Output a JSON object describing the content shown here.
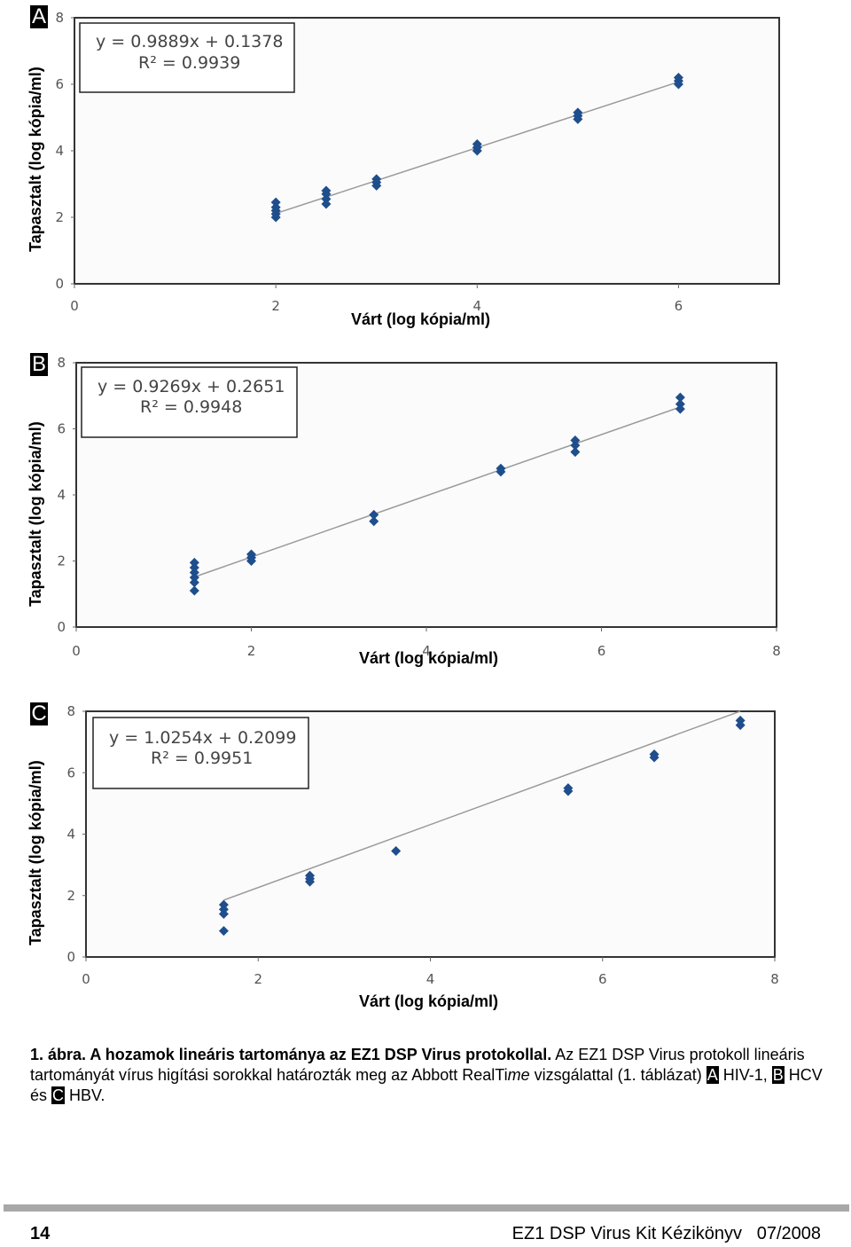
{
  "charts": [
    {
      "letter": "A",
      "ylabel": "Tapasztalt (log kópia/ml)",
      "xlabel": "Várt (log kópia/ml)",
      "equation": "y = 0.9889x + 0.1378",
      "r2": "R² = 0.9939"
    },
    {
      "letter": "B",
      "ylabel": "Tapasztalt (log kópia/ml)",
      "xlabel": "Várt (log kópia/ml)",
      "equation": "y = 0.9269x + 0.2651",
      "r2": "R² = 0.9948"
    },
    {
      "letter": "C",
      "ylabel": "Tapasztalt (log kópia/ml)",
      "xlabel": "Várt (log kópia/ml)",
      "equation": "y = 1.0254x + 0.2099",
      "r2": "R² = 0.9951"
    }
  ],
  "chart_data": [
    {
      "type": "scatter",
      "title": "A",
      "xlabel": "Várt (log kópia/ml)",
      "ylabel": "Tapasztalt (log kópia/ml)",
      "xlim": [
        0,
        7
      ],
      "ylim": [
        0,
        8
      ],
      "xticks": [
        "0",
        "2",
        "4",
        "6"
      ],
      "yticks": [
        "0",
        "2",
        "4",
        "6",
        "8"
      ],
      "trendline": {
        "slope": 0.9889,
        "intercept": 0.1378,
        "x_range": [
          2,
          6
        ]
      },
      "series": [
        {
          "name": "HIV-1",
          "points": [
            [
              2,
              2.0
            ],
            [
              2,
              2.1
            ],
            [
              2,
              2.2
            ],
            [
              2,
              2.3
            ],
            [
              2,
              2.45
            ],
            [
              2.5,
              2.4
            ],
            [
              2.5,
              2.55
            ],
            [
              2.5,
              2.7
            ],
            [
              2.5,
              2.8
            ],
            [
              3,
              2.95
            ],
            [
              3,
              3.05
            ],
            [
              3,
              3.15
            ],
            [
              4,
              4.0
            ],
            [
              4,
              4.1
            ],
            [
              4,
              4.2
            ],
            [
              5,
              4.95
            ],
            [
              5,
              5.05
            ],
            [
              5,
              5.15
            ],
            [
              6,
              6.0
            ],
            [
              6,
              6.1
            ],
            [
              6,
              6.2
            ]
          ]
        }
      ]
    },
    {
      "type": "scatter",
      "title": "B",
      "xlabel": "Várt (log kópia/ml)",
      "ylabel": "Tapasztalt (log kópia/ml)",
      "xlim": [
        0,
        8
      ],
      "ylim": [
        0,
        8
      ],
      "xticks": [
        "0",
        "2",
        "4",
        "6",
        "8"
      ],
      "yticks": [
        "0",
        "2",
        "4",
        "6",
        "8"
      ],
      "trendline": {
        "slope": 0.9269,
        "intercept": 0.2651,
        "x_range": [
          1.35,
          6.9
        ]
      },
      "series": [
        {
          "name": "HCV",
          "points": [
            [
              1.35,
              1.1
            ],
            [
              1.35,
              1.35
            ],
            [
              1.35,
              1.5
            ],
            [
              1.35,
              1.65
            ],
            [
              1.35,
              1.8
            ],
            [
              1.35,
              1.95
            ],
            [
              2,
              2.0
            ],
            [
              2,
              2.1
            ],
            [
              2,
              2.2
            ],
            [
              3.4,
              3.2
            ],
            [
              3.4,
              3.4
            ],
            [
              4.85,
              4.7
            ],
            [
              4.85,
              4.8
            ],
            [
              5.7,
              5.3
            ],
            [
              5.7,
              5.5
            ],
            [
              5.7,
              5.65
            ],
            [
              6.9,
              6.6
            ],
            [
              6.9,
              6.75
            ],
            [
              6.9,
              6.95
            ]
          ]
        }
      ]
    },
    {
      "type": "scatter",
      "title": "C",
      "xlabel": "Várt (log kópia/ml)",
      "ylabel": "Tapasztalt (log kópia/ml)",
      "xlim": [
        0,
        8
      ],
      "ylim": [
        0,
        8
      ],
      "xticks": [
        "0",
        "2",
        "4",
        "6",
        "8"
      ],
      "yticks": [
        "0",
        "2",
        "4",
        "6",
        "8"
      ],
      "trendline": {
        "slope": 1.0254,
        "intercept": 0.2099,
        "x_range": [
          1.6,
          7.6
        ]
      },
      "series": [
        {
          "name": "HBV",
          "points": [
            [
              1.6,
              0.85
            ],
            [
              1.6,
              1.4
            ],
            [
              1.6,
              1.55
            ],
            [
              1.6,
              1.7
            ],
            [
              2.6,
              2.45
            ],
            [
              2.6,
              2.55
            ],
            [
              2.6,
              2.65
            ],
            [
              3.6,
              3.45
            ],
            [
              5.6,
              5.4
            ],
            [
              5.6,
              5.5
            ],
            [
              6.6,
              6.5
            ],
            [
              6.6,
              6.6
            ],
            [
              7.6,
              7.55
            ],
            [
              7.6,
              7.7
            ]
          ]
        }
      ]
    }
  ],
  "caption": {
    "label": "1. ábra. A hozamok lineáris tartománya az EZ1 DSP Virus protokollal.",
    "text_1": " Az EZ1 DSP Virus protokoll lineáris tartományát vírus higítási sorokkal határozták meg az Abbott RealTi",
    "text_italic": "me",
    "text_2": " vizsgálattal (1. táblázat) ",
    "tag_a": "A",
    "virus_a": " HIV-1, ",
    "tag_b": "B",
    "virus_b": " HCV és ",
    "tag_c": "C",
    "virus_c": " HBV."
  },
  "footer": {
    "page": "14",
    "title": "EZ1 DSP Virus Kit Kézikönyv   07/2008"
  },
  "colors": {
    "marker": "#1f4e8c",
    "trendline": "#9a9a9a",
    "frame": "#333333"
  }
}
